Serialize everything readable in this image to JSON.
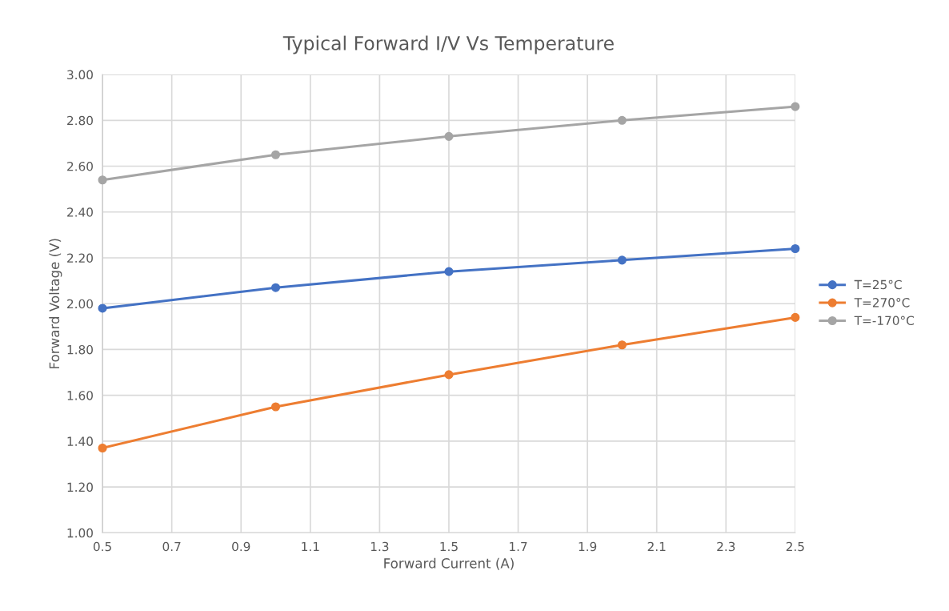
{
  "chart_data": {
    "type": "line",
    "title": "Typical Forward I/V Vs Temperature",
    "xlabel": "Forward Current (A)",
    "ylabel": "Forward Voltage (V)",
    "x": [
      0.5,
      1.0,
      1.5,
      2.0,
      2.5
    ],
    "series": [
      {
        "name": "T=25°C",
        "color": "#4472c4",
        "values": [
          1.98,
          2.07,
          2.14,
          2.19,
          2.24
        ]
      },
      {
        "name": "T=270°C",
        "color": "#ed7d31",
        "values": [
          1.37,
          1.55,
          1.69,
          1.82,
          1.94
        ]
      },
      {
        "name": "T=-170°C",
        "color": "#a5a5a5",
        "values": [
          2.54,
          2.65,
          2.73,
          2.8,
          2.86
        ]
      }
    ],
    "xlim": [
      0.5,
      2.5
    ],
    "xticks": [
      0.5,
      0.7,
      0.9,
      1.1,
      1.3,
      1.5,
      1.7,
      1.9,
      2.1,
      2.3,
      2.5
    ],
    "ylim": [
      1.0,
      3.0
    ],
    "yticks": [
      {
        "value": 1.0,
        "label": "1.00"
      },
      {
        "value": 1.2,
        "label": "1.20"
      },
      {
        "value": 1.4,
        "label": "1.40"
      },
      {
        "value": 1.6,
        "label": "1.60"
      },
      {
        "value": 1.8,
        "label": "1.80"
      },
      {
        "value": 2.0,
        "label": "2.00"
      },
      {
        "value": 2.2,
        "label": "2.20"
      },
      {
        "value": 2.4,
        "label": "2.40"
      },
      {
        "value": 2.6,
        "label": "2.60"
      },
      {
        "value": 2.8,
        "label": "2.80"
      },
      {
        "value": 3.0,
        "label": "3.00"
      }
    ],
    "grid": true,
    "legend": "right",
    "marker": "circle",
    "line_style": "solid"
  }
}
